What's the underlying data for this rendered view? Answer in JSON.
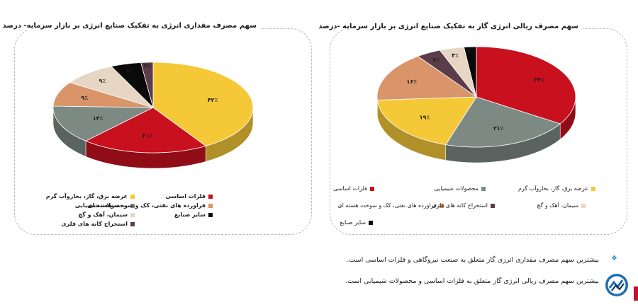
{
  "left_chart": {
    "title": "سهم مصرف مقداری انرژی به تفکیک صنایع انرژی بر بازار سرمایه- درصد",
    "legend": [
      {
        "label": "عرضه برق، گاز، بخاروآب گرم",
        "color": "#f5c838"
      },
      {
        "label": "فلزات اساسی",
        "color": "#c8101e"
      },
      {
        "label": "محصولات شیمیایی",
        "color": "#7d8a84"
      },
      {
        "label": "فراورده های نفتی، کک و سوخت هسته ای",
        "color": "#d9946a"
      },
      {
        "label": "سیمان، آهک و گچ",
        "color": "#e6d6c3"
      },
      {
        "label": "سایر صنایع",
        "color": "#0a0a0a"
      },
      {
        "label": "استخراج کانه های فلزی",
        "color": "#5a3d48"
      }
    ],
    "slice_labels": [
      "۴۲٪",
      "۲۱٪",
      "۱۴٪",
      "۹٪",
      "۹٪",
      "۵٪",
      "۲٪"
    ]
  },
  "right_chart": {
    "title": "سهم مصرف ریالی انرژی گاز به تفکیک صنایع انرژی بر بازار سرمایه -درصد",
    "legend": [
      {
        "label": "فلزات اساسی",
        "color": "#c8101e"
      },
      {
        "label": "محصولات شیمیایی",
        "color": "#7d8a84"
      },
      {
        "label": "عرضه برق، گاز، بخاروآب گرم",
        "color": "#f5c838"
      },
      {
        "label": "فراورده های نفتی، کک و سوخت هسته ای",
        "color": "#d9946a"
      },
      {
        "label": "استخراج کانه های فلزی",
        "color": "#5a3d48"
      },
      {
        "label": "سیمان، آهک و گچ",
        "color": "#e6d6c3"
      },
      {
        "label": "سایر صنایع",
        "color": "#0a0a0a"
      }
    ],
    "slice_labels": [
      "۳۴٪",
      "۲۱٪",
      "۱۹٪",
      "۱۶٪",
      "۴٪",
      "۴٪",
      "۲٪"
    ]
  },
  "notes": [
    "بیشترین سهم مصرف مقداری انرژی گاز متعلق به صنعت نیروگاهی و فلزات اساسی است.",
    "بیشترین سهم مصرف ریالی انرژی گاز متعلق به فلزات اساسی و محصولات شیمیایی است."
  ],
  "chart_data": [
    {
      "type": "pie",
      "title": "سهم مصرف مقداری انرژی به تفکیک صنایع انرژی بر بازار سرمایه- درصد",
      "categories": [
        "عرضه برق، گاز، بخاروآب گرم",
        "فلزات اساسی",
        "محصولات شیمیایی",
        "فراورده های نفتی، کک و سوخت هسته ای",
        "سیمان، آهک و گچ",
        "سایر صنایع",
        "استخراج کانه های فلزی"
      ],
      "values": [
        42,
        21,
        14,
        9,
        9,
        5,
        2
      ],
      "colors": [
        "#f5c838",
        "#c8101e",
        "#7d8a84",
        "#d9946a",
        "#e6d6c3",
        "#0a0a0a",
        "#5a3d48"
      ]
    },
    {
      "type": "pie",
      "title": "سهم مصرف ریالی انرژی گاز به تفکیک صنایع انرژی بر بازار سرمایه -درصد",
      "categories": [
        "فلزات اساسی",
        "محصولات شیمیایی",
        "عرضه برق، گاز، بخاروآب گرم",
        "فراورده های نفتی، کک و سوخت هسته ای",
        "استخراج کانه های فلزی",
        "سیمان، آهک و گچ",
        "سایر صنایع"
      ],
      "values": [
        34,
        21,
        19,
        16,
        4,
        4,
        2
      ],
      "colors": [
        "#c8101e",
        "#7d8a84",
        "#f5c838",
        "#d9946a",
        "#5a3d48",
        "#e6d6c3",
        "#0a0a0a"
      ]
    }
  ]
}
